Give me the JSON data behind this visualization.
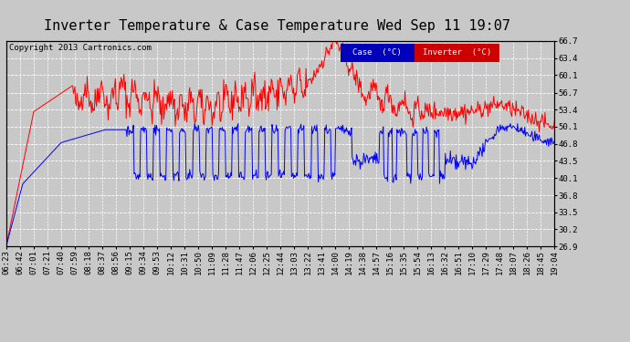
{
  "title": "Inverter Temperature & Case Temperature Wed Sep 11 19:07",
  "copyright": "Copyright 2013 Cartronics.com",
  "ylabel_right_ticks": [
    26.9,
    30.2,
    33.5,
    36.8,
    40.1,
    43.5,
    46.8,
    50.1,
    53.4,
    56.7,
    60.1,
    63.4,
    66.7
  ],
  "ylim": [
    26.9,
    66.7
  ],
  "xtick_labels": [
    "06:23",
    "06:42",
    "07:01",
    "07:21",
    "07:40",
    "07:59",
    "08:18",
    "08:37",
    "08:56",
    "09:15",
    "09:34",
    "09:53",
    "10:12",
    "10:31",
    "10:50",
    "11:09",
    "11:28",
    "11:47",
    "12:06",
    "12:25",
    "12:44",
    "13:03",
    "13:22",
    "13:41",
    "14:00",
    "14:19",
    "14:38",
    "14:57",
    "15:16",
    "15:35",
    "15:54",
    "16:13",
    "16:32",
    "16:51",
    "17:10",
    "17:29",
    "17:48",
    "18:07",
    "18:26",
    "18:45",
    "19:04"
  ],
  "bg_color": "#c8c8c8",
  "plot_bg_color": "#c8c8c8",
  "grid_color": "#ffffff",
  "case_color": "#0000ff",
  "inverter_color": "#ff0000",
  "legend_case_bg": "#0000bb",
  "legend_inverter_bg": "#cc0000",
  "title_fontsize": 11,
  "tick_fontsize": 6.5,
  "copyright_fontsize": 6.5
}
